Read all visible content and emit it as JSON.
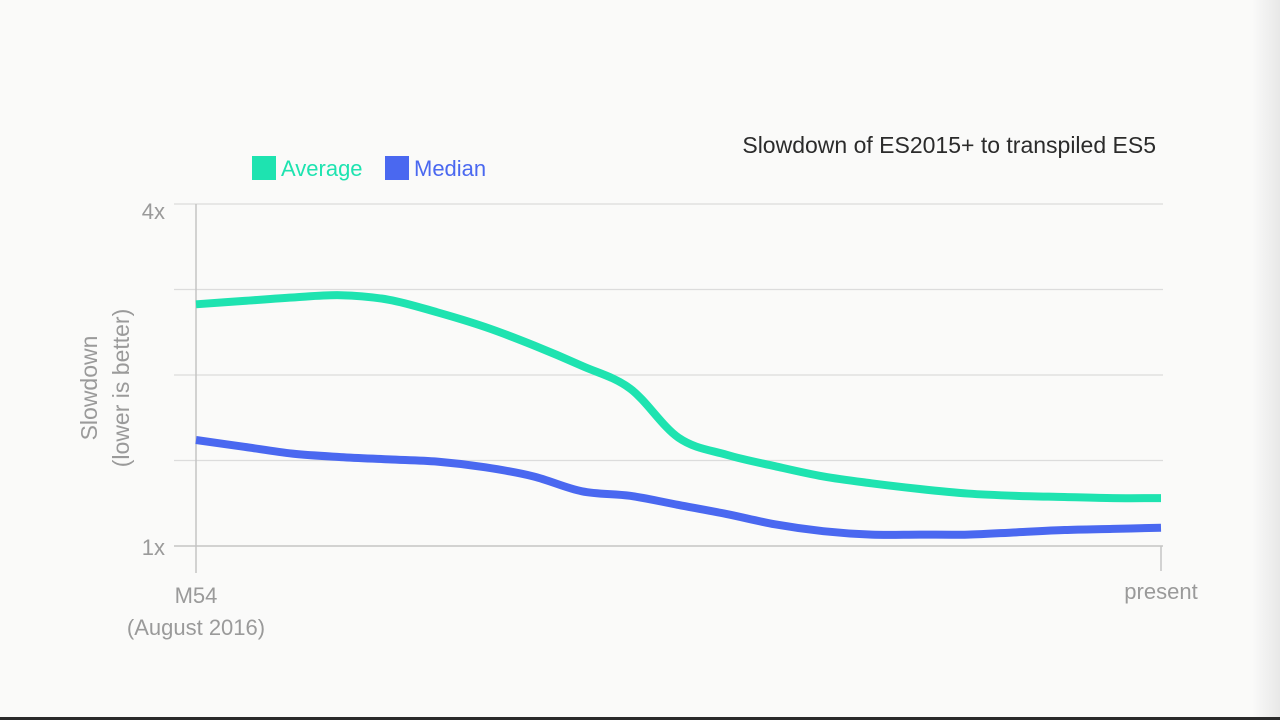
{
  "chart_data": {
    "type": "line",
    "title": "Slowdown of ES2015+ to transpiled ES5",
    "ylabel_line1": "Slowdown",
    "ylabel_line2": "(lower is better)",
    "ylim": [
      1,
      4
    ],
    "yticks": [
      {
        "value": 1,
        "label": "1x"
      },
      {
        "value": 4,
        "label": "4x"
      }
    ],
    "ygrid_values": [
      1.75,
      2.5,
      3.25
    ],
    "grid": true,
    "legend_position": "top-left",
    "x_start_label_line1": "M54",
    "x_start_label_line2": "(August 2016)",
    "x_end_label": "present",
    "x": [
      0,
      0.05,
      0.1,
      0.15,
      0.2,
      0.25,
      0.3,
      0.35,
      0.4,
      0.45,
      0.5,
      0.55,
      0.6,
      0.65,
      0.7,
      0.75,
      0.8,
      0.85,
      0.9,
      0.95,
      1.0
    ],
    "series": [
      {
        "name": "Average",
        "color": "#1ee3b0",
        "values": [
          3.12,
          3.15,
          3.18,
          3.2,
          3.16,
          3.05,
          2.92,
          2.76,
          2.58,
          2.38,
          1.95,
          1.8,
          1.7,
          1.61,
          1.55,
          1.5,
          1.46,
          1.44,
          1.43,
          1.42,
          1.42
        ]
      },
      {
        "name": "Median",
        "color": "#4a68f0",
        "values": [
          1.93,
          1.87,
          1.81,
          1.78,
          1.76,
          1.74,
          1.69,
          1.61,
          1.48,
          1.44,
          1.36,
          1.28,
          1.19,
          1.13,
          1.1,
          1.1,
          1.1,
          1.12,
          1.14,
          1.15,
          1.16
        ]
      }
    ]
  }
}
